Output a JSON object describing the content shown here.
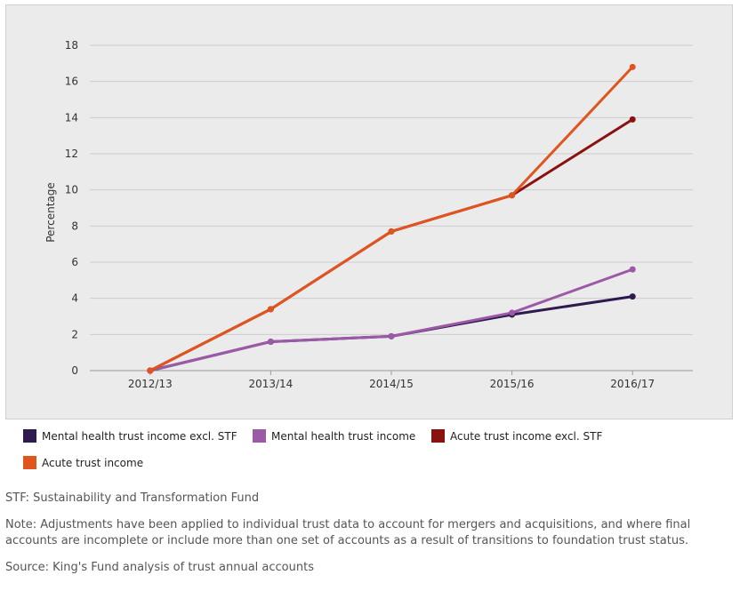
{
  "chart_data": {
    "type": "line",
    "ylabel": "Percentage",
    "xlabel": "",
    "categories": [
      "2012/13",
      "2013/14",
      "2014/15",
      "2015/16",
      "2016/17"
    ],
    "ylim": [
      0,
      18
    ],
    "yticks": [
      0,
      2,
      4,
      6,
      8,
      10,
      12,
      14,
      16,
      18
    ],
    "grid": true,
    "legend_position": "bottom",
    "series": [
      {
        "name": "Mental health trust income excl. STF",
        "color": "#2e1a4f",
        "values": [
          0,
          1.6,
          1.9,
          3.1,
          4.1
        ]
      },
      {
        "name": "Mental health trust income",
        "color": "#9b59a6",
        "values": [
          0,
          1.6,
          1.9,
          3.2,
          5.6
        ]
      },
      {
        "name": "Acute trust income excl. STF",
        "color": "#8b1010",
        "values": [
          0,
          3.4,
          7.7,
          9.7,
          13.9
        ]
      },
      {
        "name": "Acute trust income",
        "color": "#e0541e",
        "values": [
          0,
          3.4,
          7.7,
          9.7,
          16.8
        ]
      }
    ]
  },
  "notes": {
    "stf": "STF: Sustainability and Transformation Fund",
    "adjustments": "Note: Adjustments have been applied to individual trust data to account for mergers and acquisitions, and where final accounts are incomplete or include more than one set of accounts as a result of transitions to foundation trust status.",
    "source": "Source: King's Fund analysis of trust annual accounts"
  }
}
